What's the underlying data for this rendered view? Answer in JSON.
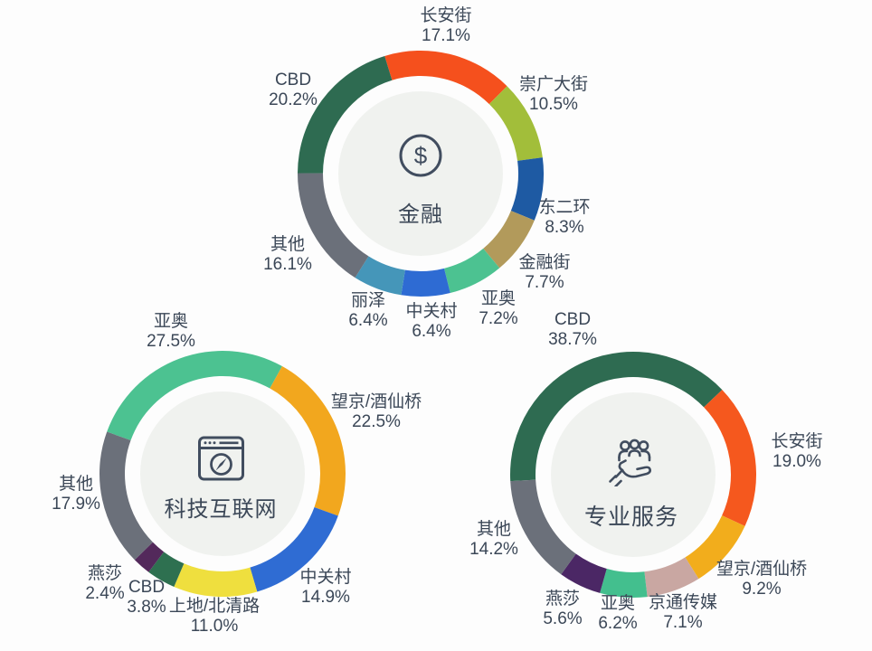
{
  "page": {
    "background": "#FDFDFD",
    "text_color": "#3B4757",
    "icon_stroke_color": "#414D5F",
    "inner_circle_color": "#F0F2EF"
  },
  "chart_data": [
    {
      "type": "pie",
      "variant": "donut",
      "title": "金融",
      "center_icon": "dollar-circle-icon",
      "start_angle_deg": -17,
      "labels": [
        "长安街",
        "崇广大街",
        "东二环",
        "金融街",
        "亚奥",
        "中关村",
        "丽泽",
        "其他",
        "CBD"
      ],
      "values": [
        17.1,
        10.5,
        8.3,
        7.7,
        7.2,
        6.4,
        6.4,
        16.1,
        20.2
      ],
      "percent_labels": [
        "17.1%",
        "10.5%",
        "8.3%",
        "7.7%",
        "7.2%",
        "6.4%",
        "6.4%",
        "16.1%",
        "20.2%"
      ],
      "colors": [
        "#F5501D",
        "#A2BE3A",
        "#1E5AA3",
        "#B29A5B",
        "#4CC291",
        "#2E6BD3",
        "#4596B9",
        "#6B707A",
        "#2E6B51"
      ]
    },
    {
      "type": "pie",
      "variant": "donut",
      "title": "科技互联网",
      "center_icon": "browser-compass-icon",
      "start_angle_deg": -70,
      "labels": [
        "亚奥",
        "望京/酒仙桥",
        "中关村",
        "上地/北清路",
        "CBD",
        "燕莎",
        "其他"
      ],
      "values": [
        27.5,
        22.5,
        14.9,
        11.0,
        3.8,
        2.4,
        17.9
      ],
      "percent_labels": [
        "27.5%",
        "22.5%",
        "14.9%",
        "11.0%",
        "3.8%",
        "2.4%",
        "17.9%"
      ],
      "colors": [
        "#4CC291",
        "#F2A71E",
        "#2F6CD3",
        "#EFDF3E",
        "#2E7050",
        "#53295B",
        "#6B707A"
      ]
    },
    {
      "type": "pie",
      "variant": "donut",
      "title": "专业服务",
      "center_icon": "hand-holding-people-icon",
      "start_angle_deg": -93,
      "labels": [
        "CBD",
        "长安街",
        "望京/酒仙桥",
        "京通传媒",
        "亚奥",
        "燕莎",
        "其他"
      ],
      "values": [
        38.7,
        19.0,
        9.2,
        7.1,
        6.2,
        5.6,
        14.2
      ],
      "percent_labels": [
        "38.7%",
        "19.0%",
        "9.2%",
        "7.1%",
        "6.2%",
        "5.6%",
        "14.2%"
      ],
      "colors": [
        "#2E6B51",
        "#F5581E",
        "#F2AD1C",
        "#C9A7A2",
        "#43BF8E",
        "#4B2765",
        "#6B707A"
      ]
    }
  ]
}
